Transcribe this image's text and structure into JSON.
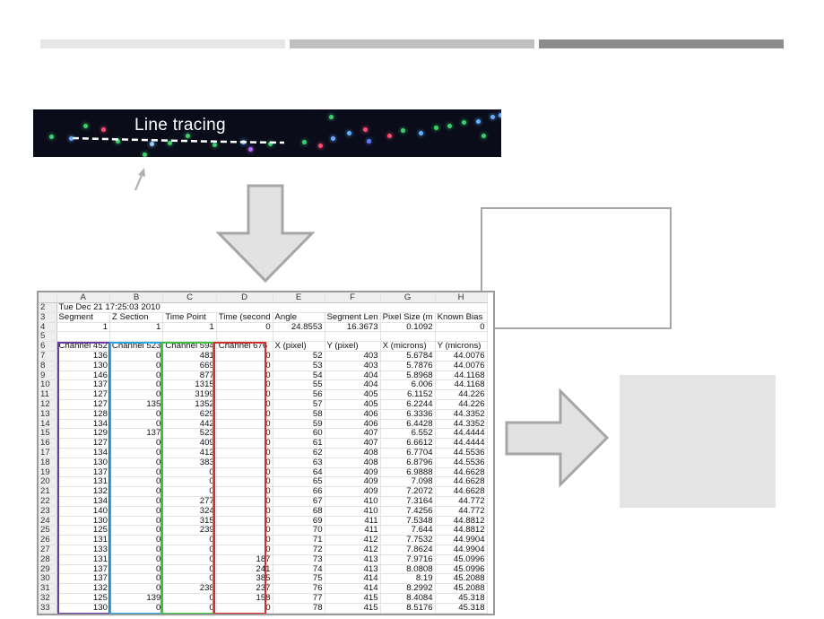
{
  "header_bars": [
    {
      "color": "#e6e6e6"
    },
    {
      "color": "#bfbfbf"
    },
    {
      "color": "#8c8c8c"
    }
  ],
  "image_strip": {
    "label": "Line tracing"
  },
  "spreadsheet": {
    "column_letters": [
      "A",
      "B",
      "C",
      "D",
      "E",
      "F",
      "G",
      "H"
    ],
    "rows": [
      {
        "n": "2",
        "cells": [
          "Tue Dec 21 17:25:03 2010",
          "",
          "",
          "",
          "",
          "",
          "",
          ""
        ]
      },
      {
        "n": "3",
        "cells": [
          "Segment",
          "Z Section",
          "Time Point",
          "Time (second",
          "Angle",
          "Segment Len",
          "Pixel Size (m",
          "Known Bias"
        ]
      },
      {
        "n": "4",
        "cells": [
          "1",
          "1",
          "1",
          "0",
          "24.8553",
          "16.3673",
          "0.1092",
          "0"
        ]
      },
      {
        "n": "5",
        "cells": [
          "",
          "",
          "",
          "",
          "",
          "",
          "",
          ""
        ]
      },
      {
        "n": "6",
        "cells": [
          "Channel 452",
          "Channel 523",
          "Channel 594",
          "Channel 676",
          "X (pixel)",
          "Y (pixel)",
          "X (microns)",
          "Y (microns)"
        ]
      },
      {
        "n": "7",
        "cells": [
          "136",
          "0",
          "481",
          "0",
          "52",
          "403",
          "5.6784",
          "44.0076"
        ]
      },
      {
        "n": "8",
        "cells": [
          "130",
          "0",
          "669",
          "0",
          "53",
          "403",
          "5.7876",
          "44.0076"
        ]
      },
      {
        "n": "9",
        "cells": [
          "146",
          "0",
          "877",
          "0",
          "54",
          "404",
          "5.8968",
          "44.1168"
        ]
      },
      {
        "n": "10",
        "cells": [
          "137",
          "0",
          "1315",
          "0",
          "55",
          "404",
          "6.006",
          "44.1168"
        ]
      },
      {
        "n": "11",
        "cells": [
          "127",
          "0",
          "3199",
          "0",
          "56",
          "405",
          "6.1152",
          "44.226"
        ]
      },
      {
        "n": "12",
        "cells": [
          "127",
          "135",
          "1352",
          "0",
          "57",
          "405",
          "6.2244",
          "44.226"
        ]
      },
      {
        "n": "13",
        "cells": [
          "128",
          "0",
          "629",
          "0",
          "58",
          "406",
          "6.3336",
          "44.3352"
        ]
      },
      {
        "n": "14",
        "cells": [
          "134",
          "0",
          "442",
          "0",
          "59",
          "406",
          "6.4428",
          "44.3352"
        ]
      },
      {
        "n": "15",
        "cells": [
          "129",
          "137",
          "523",
          "0",
          "60",
          "407",
          "6.552",
          "44.4444"
        ]
      },
      {
        "n": "16",
        "cells": [
          "127",
          "0",
          "409",
          "0",
          "61",
          "407",
          "6.6612",
          "44.4444"
        ]
      },
      {
        "n": "17",
        "cells": [
          "134",
          "0",
          "412",
          "0",
          "62",
          "408",
          "6.7704",
          "44.5536"
        ]
      },
      {
        "n": "18",
        "cells": [
          "130",
          "0",
          "383",
          "0",
          "63",
          "408",
          "6.8796",
          "44.5536"
        ]
      },
      {
        "n": "19",
        "cells": [
          "137",
          "0",
          "0",
          "0",
          "64",
          "409",
          "6.9888",
          "44.6628"
        ]
      },
      {
        "n": "20",
        "cells": [
          "131",
          "0",
          "0",
          "0",
          "65",
          "409",
          "7.098",
          "44.6628"
        ]
      },
      {
        "n": "21",
        "cells": [
          "132",
          "0",
          "0",
          "0",
          "66",
          "409",
          "7.2072",
          "44.6628"
        ]
      },
      {
        "n": "22",
        "cells": [
          "134",
          "0",
          "277",
          "0",
          "67",
          "410",
          "7.3164",
          "44.772"
        ]
      },
      {
        "n": "23",
        "cells": [
          "140",
          "0",
          "324",
          "0",
          "68",
          "410",
          "7.4256",
          "44.772"
        ]
      },
      {
        "n": "24",
        "cells": [
          "130",
          "0",
          "315",
          "0",
          "69",
          "411",
          "7.5348",
          "44.8812"
        ]
      },
      {
        "n": "25",
        "cells": [
          "125",
          "0",
          "239",
          "0",
          "70",
          "411",
          "7.644",
          "44.8812"
        ]
      },
      {
        "n": "26",
        "cells": [
          "131",
          "0",
          "0",
          "0",
          "71",
          "412",
          "7.7532",
          "44.9904"
        ]
      },
      {
        "n": "27",
        "cells": [
          "133",
          "0",
          "0",
          "0",
          "72",
          "412",
          "7.8624",
          "44.9904"
        ]
      },
      {
        "n": "28",
        "cells": [
          "131",
          "0",
          "0",
          "187",
          "73",
          "413",
          "7.9716",
          "45.0996"
        ]
      },
      {
        "n": "29",
        "cells": [
          "137",
          "0",
          "0",
          "241",
          "74",
          "413",
          "8.0808",
          "45.0996"
        ]
      },
      {
        "n": "30",
        "cells": [
          "137",
          "0",
          "0",
          "385",
          "75",
          "414",
          "8.19",
          "45.2088"
        ]
      },
      {
        "n": "31",
        "cells": [
          "132",
          "0",
          "238",
          "237",
          "76",
          "414",
          "8.2992",
          "45.2088"
        ]
      },
      {
        "n": "32",
        "cells": [
          "125",
          "139",
          "0",
          "158",
          "77",
          "415",
          "8.4084",
          "45.318"
        ]
      },
      {
        "n": "33",
        "cells": [
          "130",
          "0",
          "0",
          "0",
          "78",
          "415",
          "8.5176",
          "45.318"
        ]
      }
    ],
    "highlight_colors": [
      "#6a3fa0",
      "#2aa6e0",
      "#3cc23c",
      "#d03030"
    ]
  }
}
